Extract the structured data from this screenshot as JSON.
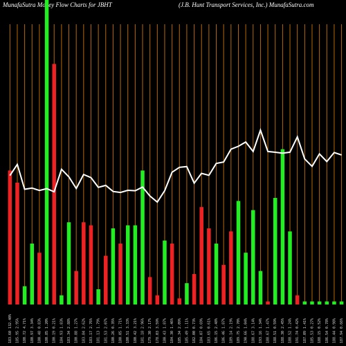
{
  "header": {
    "left": "MunafaSutra  Money Flow  Charts for JBHT",
    "right": "(J.B. Hunt Transport Services, Inc.) MunafaSutra.com"
  },
  "colors": {
    "background": "#000000",
    "up": "#22ee22",
    "down": "#ee2222",
    "gridline": "#b86a00",
    "line": "#ffffff"
  },
  "chart_data": {
    "type": "bar",
    "title": "MunafaSutra  Money Flow  Charts for JBHT",
    "subtitle": "(J.B. Hunt Transport Services, Inc.) MunafaSutra.com",
    "grid": true,
    "ylim": [
      0,
      100
    ],
    "categories": [
      "183.60 132.40%",
      "185.95 2.95%",
      "180.72 4.71%",
      "180.97 3.34%",
      "180.48 0.83%",
      "180.85 1.20%",
      "180.19 0.21%",
      "184.93 1.83%",
      "183.34 2.88%",
      "180.88 1.27%",
      "183.84 2.62%",
      "183.17 2.76%",
      "181.13 1.79%",
      "181.53 2.07%",
      "180.26 0.35%",
      "180.05 1.71%",
      "180.51 3.33%",
      "180.42 3.21%",
      "181.18 2.96%",
      "179.30 2.17%",
      "178.03 3.59%",
      "180.43 1.87%",
      "184.30 1.46%",
      "185.34 2.09%",
      "185.49 1.11%",
      "182.00 0.73%",
      "184.07 0.69%",
      "183.65 0.61%",
      "186.15 2.48%",
      "186.46 1.87%",
      "189.14 2.19%",
      "189.75 2.70%",
      "190.66 1.04%",
      "188.67 3.14%",
      "193.16 1.34%",
      "188.67 1.47%",
      "188.51 0.59%",
      "188.30 2.45%",
      "188.52 1.24%",
      "191.74 0.42%",
      "187.09 1.41%",
      "185.53 0.27%",
      "188.15 0.52%",
      "186.54 0.78%",
      "188.44 0.98%",
      "187.94 0.66%"
    ],
    "bar_series": {
      "name": "Money Flow",
      "values": [
        44,
        40,
        6,
        20,
        17,
        100,
        79,
        3,
        27,
        11,
        27,
        26,
        5,
        16,
        25,
        20,
        26,
        26,
        44,
        9,
        3,
        21,
        20,
        2,
        7,
        10,
        32,
        25,
        20,
        13,
        24,
        34,
        17,
        31,
        11,
        1,
        35,
        51,
        24,
        3,
        1,
        1,
        1,
        1,
        1,
        1
      ],
      "direction": [
        "down",
        "down",
        "up",
        "up",
        "down",
        "up",
        "down",
        "up",
        "up",
        "down",
        "down",
        "down",
        "up",
        "down",
        "up",
        "down",
        "up",
        "up",
        "up",
        "down",
        "down",
        "up",
        "down",
        "down",
        "up",
        "down",
        "down",
        "down",
        "up",
        "down",
        "down",
        "up",
        "up",
        "up",
        "up",
        "down",
        "up",
        "up",
        "up",
        "down",
        "up",
        "up",
        "up",
        "up",
        "up",
        "up"
      ]
    },
    "line_series": {
      "name": "Price",
      "values": [
        183.6,
        185.95,
        180.72,
        180.97,
        180.48,
        180.85,
        180.19,
        184.93,
        183.34,
        180.88,
        183.84,
        183.17,
        181.13,
        181.53,
        180.26,
        180.05,
        180.51,
        180.42,
        181.18,
        179.3,
        178.03,
        180.43,
        184.3,
        185.34,
        185.49,
        182.0,
        184.07,
        183.65,
        186.15,
        186.46,
        189.14,
        189.75,
        190.66,
        188.67,
        193.16,
        188.67,
        188.51,
        188.3,
        188.52,
        191.74,
        187.09,
        185.53,
        188.15,
        186.54,
        188.44,
        187.94
      ]
    }
  }
}
